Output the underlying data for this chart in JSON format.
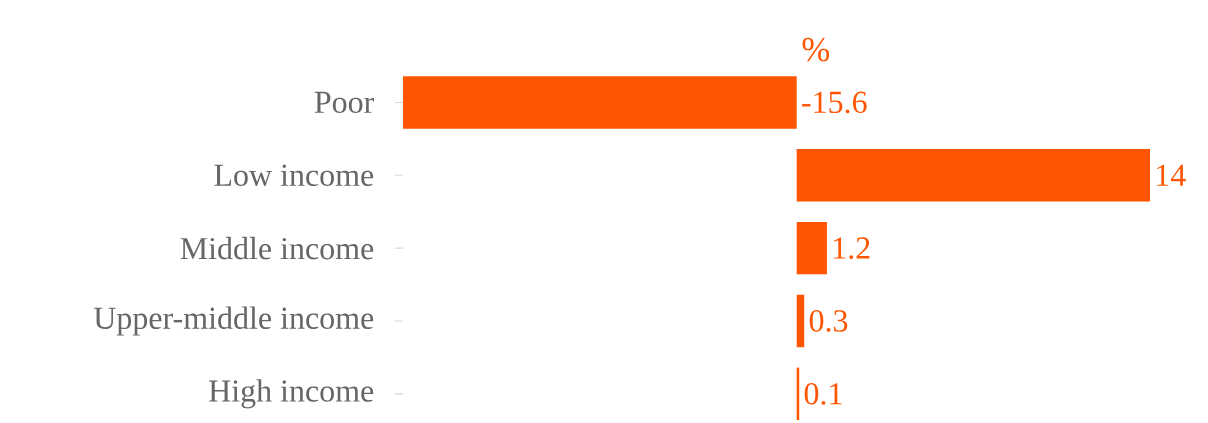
{
  "chart_data": {
    "type": "bar",
    "orientation": "horizontal",
    "title": "%",
    "categories": [
      "Poor",
      "Low income",
      "Middle income",
      "Upper-middle income",
      "High income"
    ],
    "values": [
      -15.6,
      14,
      1.2,
      0.3,
      0.1
    ],
    "color": "#ff5500",
    "data_labels": true
  }
}
